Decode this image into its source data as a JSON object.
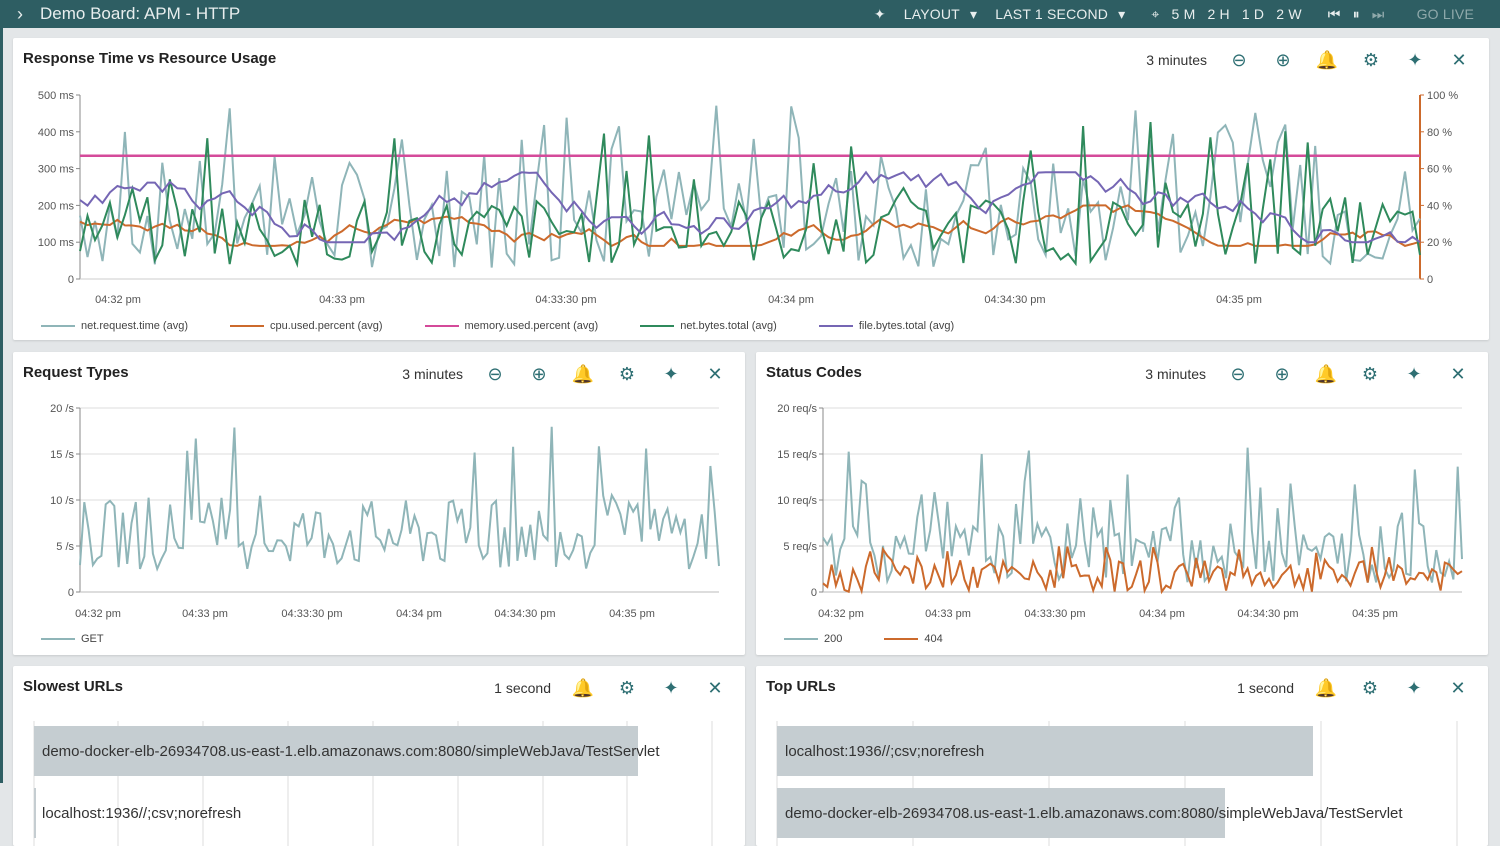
{
  "topbar": {
    "title": "Demo Board: APM - HTTP",
    "layout_label": "LAYOUT",
    "time_label": "LAST 1 SECOND",
    "ranges": [
      "5 M",
      "2 H",
      "1 D",
      "2 W"
    ],
    "go_live": "GO LIVE"
  },
  "panel_main": {
    "title": "Response Time vs Resource Usage",
    "range": "3 minutes",
    "y_left": [
      "500 ms",
      "400 ms",
      "300 ms",
      "200 ms",
      "100 ms",
      "0"
    ],
    "y_right": [
      "100 %",
      "80 %",
      "60 %",
      "40 %",
      "20 %",
      "0"
    ],
    "x_ticks": [
      "04:32 pm",
      "04:33 pm",
      "04:33:30 pm",
      "04:34 pm",
      "04:34:30 pm",
      "04:35 pm"
    ]
  },
  "panel_req": {
    "title": "Request Types",
    "range": "3 minutes",
    "y": [
      "20 /s",
      "15 /s",
      "10 /s",
      "5 /s",
      "0"
    ],
    "x_ticks": [
      "04:32 pm",
      "04:33 pm",
      "04:33:30 pm",
      "04:34 pm",
      "04:34:30 pm",
      "04:35 pm"
    ]
  },
  "panel_status": {
    "title": "Status Codes",
    "range": "3 minutes",
    "y": [
      "20 req/s",
      "15 req/s",
      "10 req/s",
      "5 req/s",
      "0"
    ],
    "x_ticks": [
      "04:32 pm",
      "04:33 pm",
      "04:33:30 pm",
      "04:34 pm",
      "04:34:30 pm",
      "04:35 pm"
    ]
  },
  "panel_slow": {
    "title": "Slowest URLs",
    "range": "1 second",
    "rows": [
      "demo-docker-elb-26934708.us-east-1.elb.amazonaws.com:8080/simpleWebJava/TestServlet",
      "localhost:1936//;csv;norefresh"
    ]
  },
  "panel_top": {
    "title": "Top URLs",
    "range": "1 second",
    "rows": [
      "localhost:1936//;csv;norefresh",
      "demo-docker-elb-26934708.us-east-1.elb.amazonaws.com:8080/simpleWebJava/TestServlet"
    ]
  },
  "colors": {
    "teal_light": "#8fb5b8",
    "orange": "#cc6a2c",
    "pink": "#d44a9a",
    "green": "#2f8a5c",
    "purple": "#7566b4"
  },
  "chart_data": [
    {
      "type": "line",
      "title": "Response Time vs Resource Usage",
      "x_range": [
        "04:31:50 pm",
        "04:35:30 pm"
      ],
      "ylim_left": [
        0,
        500
      ],
      "ylim_right": [
        0,
        100
      ],
      "series": [
        {
          "name": "net.request.time (avg)",
          "axis": "left",
          "approx_range": [
            10,
            480
          ]
        },
        {
          "name": "cpu.used.percent (avg)",
          "axis": "right",
          "approx_range": [
            18,
            42
          ]
        },
        {
          "name": "memory.used.percent (avg)",
          "axis": "right",
          "values_constant": 67
        },
        {
          "name": "net.bytes.total (avg)",
          "axis": "right",
          "approx_range": [
            5,
            87
          ]
        },
        {
          "name": "file.bytes.total (avg)",
          "axis": "right",
          "approx_range": [
            18,
            58
          ]
        }
      ],
      "legend": "bottom"
    },
    {
      "type": "line",
      "title": "Request Types",
      "ylim": [
        0,
        20
      ],
      "series": [
        {
          "name": "GET",
          "approx_range": [
            2,
            18
          ]
        }
      ],
      "legend": "bottom"
    },
    {
      "type": "line",
      "title": "Status Codes",
      "ylim": [
        0,
        20
      ],
      "series": [
        {
          "name": "200",
          "approx_range": [
            1,
            16
          ]
        },
        {
          "name": "404",
          "approx_range": [
            0,
            5
          ]
        }
      ],
      "legend": "bottom"
    },
    {
      "type": "bar",
      "title": "Slowest URLs",
      "categories": [
        "demo-docker-elb-26934708.us-east-1.elb.amazonaws.com:8080/simpleWebJava/TestServlet",
        "localhost:1936//;csv;norefresh"
      ],
      "values": [
        0.89,
        0.003
      ]
    },
    {
      "type": "bar",
      "title": "Top URLs",
      "categories": [
        "localhost:1936//;csv;norefresh",
        "demo-docker-elb-26934708.us-east-1.elb.amazonaws.com:8080/simpleWebJava/TestServlet"
      ],
      "values": [
        0.79,
        0.66
      ]
    }
  ]
}
